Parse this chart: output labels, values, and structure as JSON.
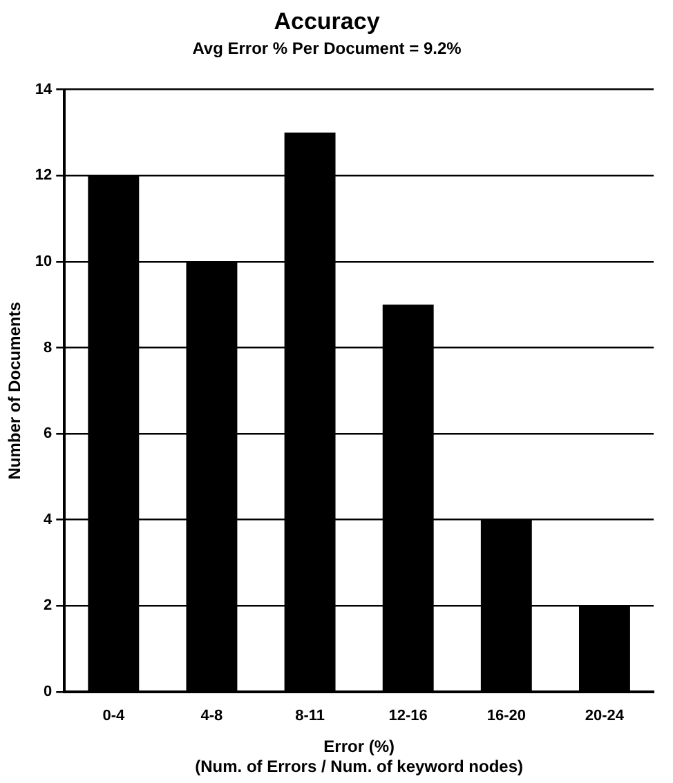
{
  "chart_data": {
    "type": "bar",
    "title": "Accuracy",
    "subtitle": "Avg Error % Per Document = 9.2%",
    "xlabel": "Error (%)",
    "ylabel": "Number of Documents",
    "annotations": [
      "(Num. of Errors / Num. of keyword nodes)"
    ],
    "categories": [
      "0-4",
      "4-8",
      "8-11",
      "12-16",
      "16-20",
      "20-24"
    ],
    "values": [
      12,
      10,
      13,
      9,
      4,
      2
    ],
    "color": "#000000",
    "ylim": [
      0,
      14
    ],
    "yticks": [
      0,
      2,
      4,
      6,
      8,
      10,
      12,
      14
    ],
    "grid": "y",
    "legend": false
  }
}
